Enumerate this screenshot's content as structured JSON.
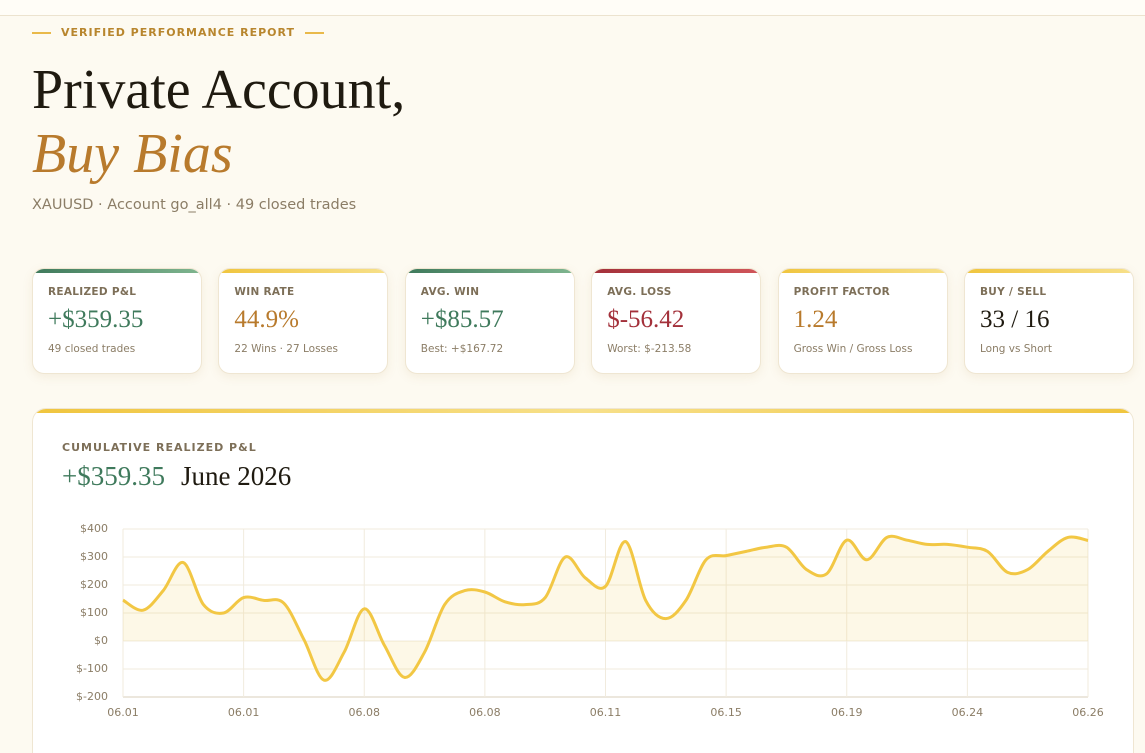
{
  "header": {
    "eyebrow": "VERIFIED PERFORMANCE REPORT",
    "title_line1": "Private Account,",
    "title_line2": "Buy Bias",
    "subtitle": "XAUUSD · Account go_all4 · 49 closed trades"
  },
  "cards": [
    {
      "label": "REALIZED P&L",
      "value": "+$359.35",
      "note": "49 closed trades"
    },
    {
      "label": "WIN RATE",
      "value": "44.9%",
      "note": "22 Wins · 27 Losses"
    },
    {
      "label": "AVG. WIN",
      "value": "+$85.57",
      "note": "Best: +$167.72"
    },
    {
      "label": "AVG. LOSS",
      "value": "$-56.42",
      "note": "Worst: $-213.58"
    },
    {
      "label": "PROFIT FACTOR",
      "value": "1.24",
      "note": "Gross Win / Gross Loss"
    },
    {
      "label": "BUY / SELL",
      "value": "33 / 16",
      "note": "Long vs Short"
    }
  ],
  "chart_data": {
    "type": "line",
    "title": "CUMULATIVE REALIZED P&L",
    "total": "+$359.35",
    "period": "June 2026",
    "categories": [
      "06.01",
      null,
      null,
      null,
      null,
      null,
      "06.01",
      null,
      null,
      null,
      null,
      null,
      "06.08",
      null,
      null,
      null,
      null,
      null,
      "06.08",
      null,
      null,
      null,
      null,
      null,
      "06.11",
      null,
      null,
      null,
      null,
      null,
      "06.15",
      null,
      null,
      null,
      null,
      null,
      "06.19",
      null,
      null,
      null,
      null,
      null,
      "06.24",
      null,
      null,
      null,
      null,
      null,
      "06.26"
    ],
    "values": [
      146,
      110,
      180,
      280,
      130,
      100,
      155,
      145,
      135,
      5,
      -140,
      -40,
      115,
      -15,
      -130,
      -40,
      130,
      180,
      175,
      140,
      130,
      155,
      300,
      225,
      195,
      355,
      145,
      80,
      145,
      290,
      305,
      320,
      335,
      335,
      255,
      240,
      360,
      290,
      370,
      360,
      345,
      345,
      335,
      320,
      245,
      255,
      320,
      370,
      359
    ],
    "color": "#f2c744",
    "ylim": [
      -200,
      400
    ],
    "yticks": [
      {
        "value": 400,
        "label": "$400"
      },
      {
        "value": 300,
        "label": "$300"
      },
      {
        "value": 200,
        "label": "$200"
      },
      {
        "value": 100,
        "label": "$100"
      },
      {
        "value": 0,
        "label": "$0"
      },
      {
        "value": -100,
        "label": "$-100"
      },
      {
        "value": -200,
        "label": "$-200"
      }
    ],
    "grid": true
  }
}
